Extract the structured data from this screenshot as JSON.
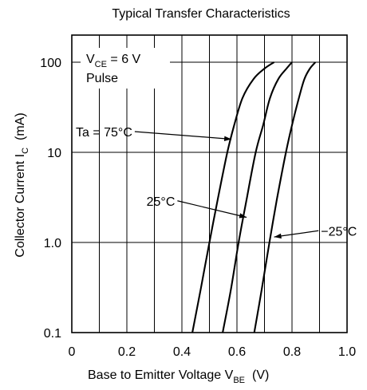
{
  "chart_data": {
    "type": "line",
    "title": "Typical Transfer Characteristics",
    "xlabel": {
      "text": "Base to Emitter Voltage  V",
      "sub": "BE",
      "unit": "(V)"
    },
    "ylabel": {
      "text": "Collector Current  I",
      "sub": "C",
      "unit": "(mA)"
    },
    "xlim": [
      0,
      1.0
    ],
    "ylim": [
      0.1,
      200
    ],
    "y_scale": "log",
    "x_ticks": [
      {
        "value": 0,
        "label": "0"
      },
      {
        "value": 0.2,
        "label": "0.2"
      },
      {
        "value": 0.4,
        "label": "0.4"
      },
      {
        "value": 0.6,
        "label": "0.6"
      },
      {
        "value": 0.8,
        "label": "0.8"
      },
      {
        "value": 1.0,
        "label": "1.0"
      }
    ],
    "x_gridlines": [
      0.1,
      0.2,
      0.3,
      0.4,
      0.5,
      0.6,
      0.7,
      0.8,
      0.9
    ],
    "y_ticks": [
      {
        "value": 0.1,
        "label": "0.1"
      },
      {
        "value": 1,
        "label": "1.0"
      },
      {
        "value": 10,
        "label": "10"
      },
      {
        "value": 100,
        "label": "100"
      }
    ],
    "grid": true,
    "conditions": {
      "vce_prefix": "V",
      "vce_sub": "CE",
      "vce_value": " = 6 V",
      "mode": "Pulse"
    },
    "series": [
      {
        "name": "Ta = 75°C",
        "points": [
          [
            0.438,
            0.1
          ],
          [
            0.468,
            0.3
          ],
          [
            0.5,
            1.0
          ],
          [
            0.53,
            3.0
          ],
          [
            0.565,
            10
          ],
          [
            0.59,
            20
          ],
          [
            0.62,
            40
          ],
          [
            0.66,
            65
          ],
          [
            0.7,
            85
          ],
          [
            0.735,
            100
          ]
        ]
      },
      {
        "name": "25°C",
        "points": [
          [
            0.548,
            0.1
          ],
          [
            0.578,
            0.3
          ],
          [
            0.606,
            1.0
          ],
          [
            0.635,
            3.0
          ],
          [
            0.668,
            10
          ],
          [
            0.695,
            20
          ],
          [
            0.72,
            40
          ],
          [
            0.75,
            65
          ],
          [
            0.78,
            85
          ],
          [
            0.8,
            100
          ]
        ]
      },
      {
        "name": "−25°C",
        "points": [
          [
            0.663,
            0.1
          ],
          [
            0.69,
            0.3
          ],
          [
            0.718,
            1.0
          ],
          [
            0.745,
            3.0
          ],
          [
            0.778,
            10
          ],
          [
            0.8,
            20
          ],
          [
            0.825,
            40
          ],
          [
            0.845,
            65
          ],
          [
            0.865,
            85
          ],
          [
            0.885,
            100
          ]
        ]
      }
    ],
    "annotations": [
      {
        "text": "Ta = 75°C",
        "series": 0,
        "label_at": [
          0.22,
          17
        ],
        "point_to": [
          0.58,
          14
        ]
      },
      {
        "text": "25°C",
        "series": 1,
        "label_at": [
          0.375,
          2.9
        ],
        "point_to": [
          0.635,
          1.9
        ]
      },
      {
        "text": "−25°C",
        "series": 2,
        "label_at": [
          0.905,
          1.35
        ],
        "point_to": [
          0.735,
          1.15
        ]
      }
    ]
  }
}
